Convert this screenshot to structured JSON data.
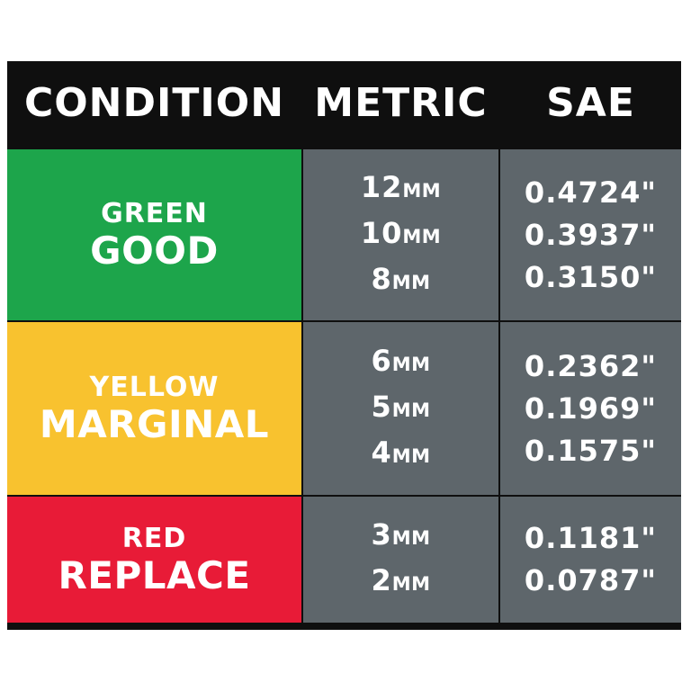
{
  "header": {
    "condition": "CONDITION",
    "metric": "METRIC",
    "sae": "SAE"
  },
  "unit_label": "MM",
  "colors": {
    "green": "#1da54b",
    "yellow": "#f8c22f",
    "red": "#e81b37",
    "gray": "#5e666b",
    "border": "#0f0f0f"
  },
  "rows": [
    {
      "color_name": "GREEN",
      "status": "GOOD",
      "metric": [
        "12",
        "10",
        "8"
      ],
      "sae": [
        "0.4724\"",
        "0.3937\"",
        "0.3150\""
      ]
    },
    {
      "color_name": "YELLOW",
      "status": "MARGINAL",
      "metric": [
        "6",
        "5",
        "4"
      ],
      "sae": [
        "0.2362\"",
        "0.1969\"",
        "0.1575\""
      ]
    },
    {
      "color_name": "RED",
      "status": "REPLACE",
      "metric": [
        "3",
        "2"
      ],
      "sae": [
        "0.1181\"",
        "0.0787\""
      ]
    }
  ]
}
